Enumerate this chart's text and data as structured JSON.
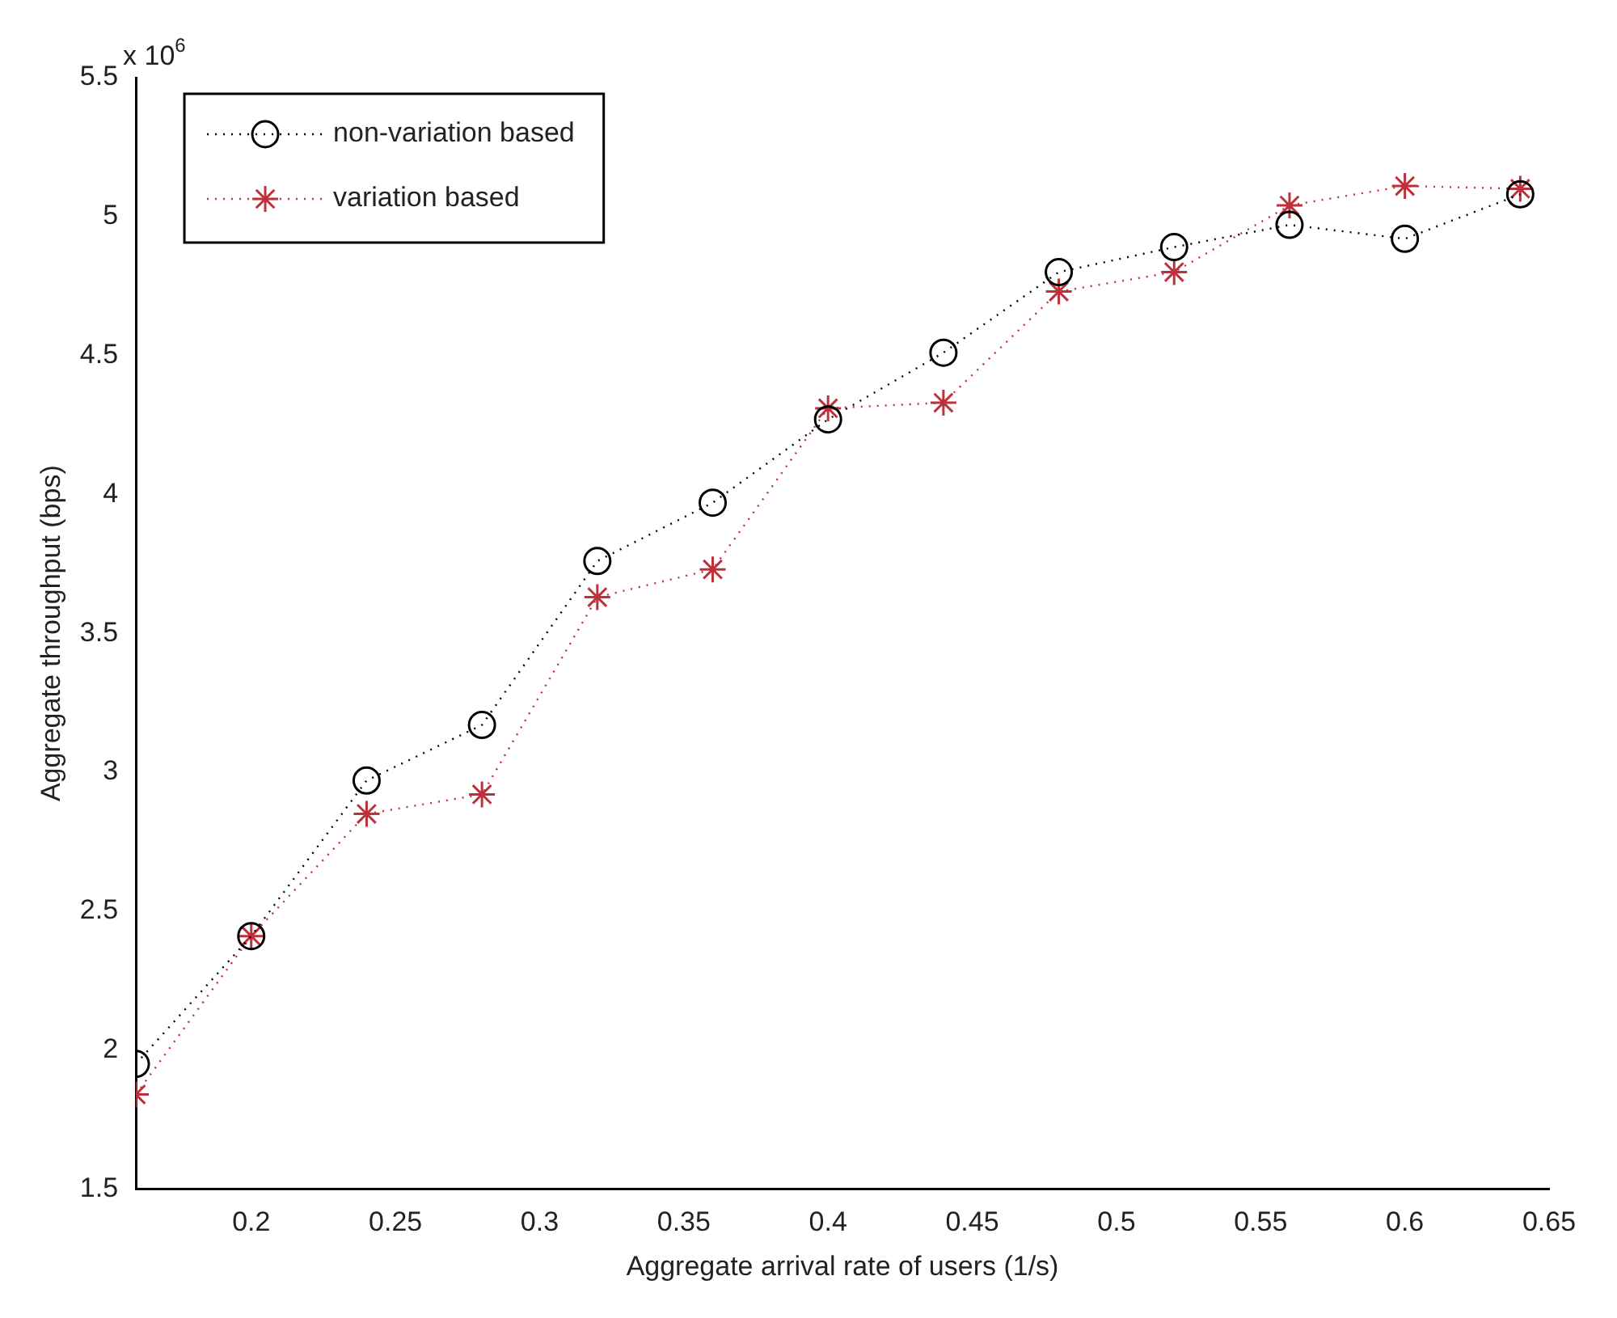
{
  "chart_data": {
    "type": "line",
    "xlabel": "Aggregate arrival rate of users (1/s)",
    "ylabel": "Aggregate throughput (bps)",
    "x": [
      0.16,
      0.2,
      0.24,
      0.28,
      0.32,
      0.36,
      0.4,
      0.44,
      0.48,
      0.52,
      0.56,
      0.6,
      0.64
    ],
    "series": [
      {
        "name": "non-variation based",
        "color": "#000000",
        "marker": "circle",
        "values": [
          1.95,
          2.41,
          2.97,
          3.17,
          3.76,
          3.97,
          4.27,
          4.51,
          4.8,
          4.89,
          4.97,
          4.92,
          5.08
        ]
      },
      {
        "name": "variation based",
        "color": "#c0303a",
        "marker": "cross",
        "values": [
          1.84,
          2.41,
          2.85,
          2.92,
          3.63,
          3.73,
          4.31,
          4.33,
          4.73,
          4.8,
          5.04,
          5.11,
          5.1
        ]
      }
    ],
    "xlim": [
      0.16,
      0.65
    ],
    "xticks": [
      0.2,
      0.25,
      0.3,
      0.35,
      0.4,
      0.45,
      0.5,
      0.55,
      0.6,
      0.65
    ],
    "ylim": [
      1.5,
      5.5
    ],
    "yticks": [
      1.5,
      2,
      2.5,
      3,
      3.5,
      4,
      4.5,
      5,
      5.5
    ],
    "annotations": [
      "x 10$^{6}$"
    ],
    "line_style": "dotted",
    "legend": "top left",
    "grid": false
  }
}
